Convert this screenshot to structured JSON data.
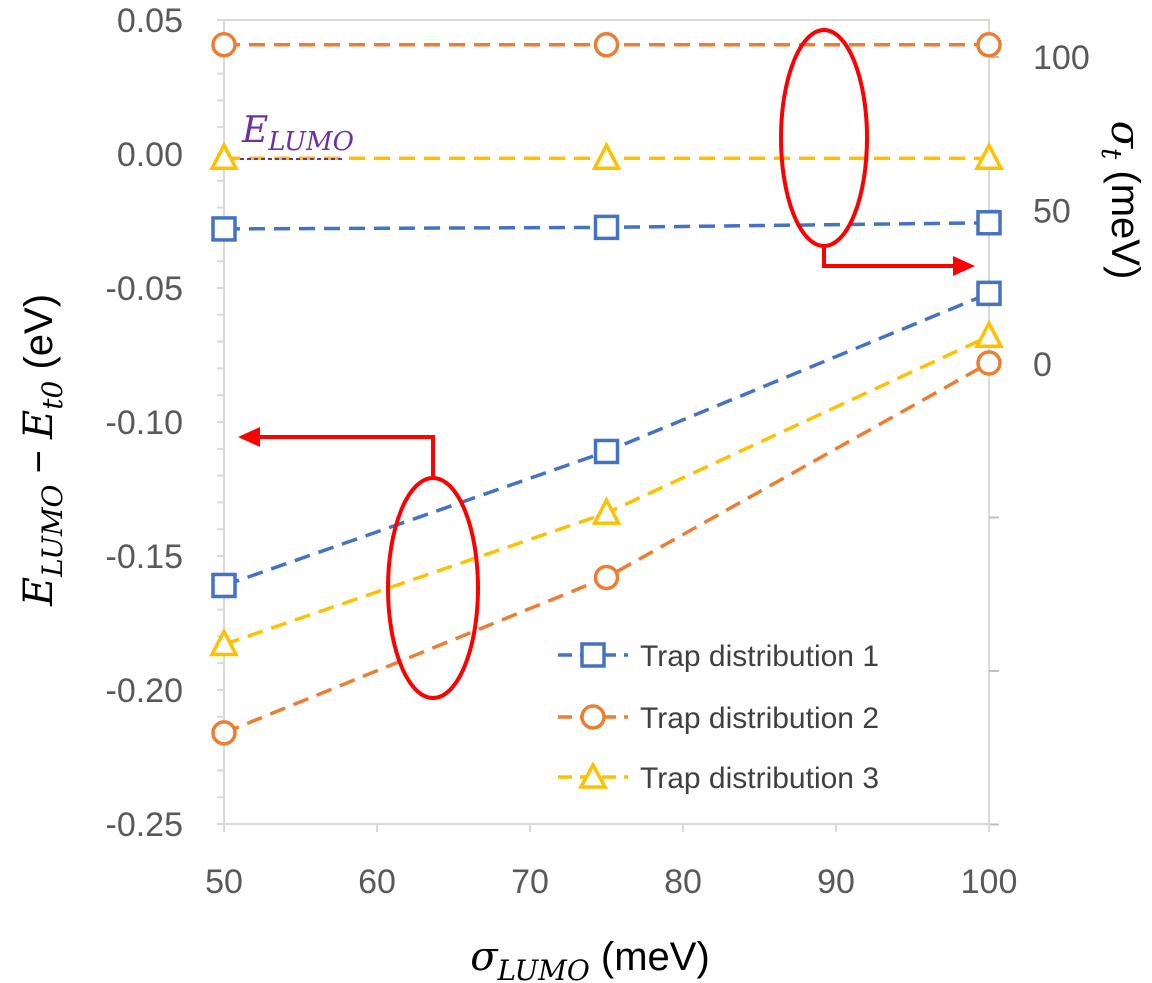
{
  "chart_data": {
    "type": "line",
    "x": [
      50,
      75,
      100
    ],
    "xlim": [
      50,
      100
    ],
    "xticks": [
      "50",
      "60",
      "70",
      "80",
      "90",
      "100"
    ],
    "xlabel": {
      "main": "σ",
      "sub": "LUMO",
      "unit": " (meV)"
    },
    "y_left": {
      "lim": [
        -0.25,
        0.05
      ],
      "ticks": [
        "0.05",
        "0.00",
        "-0.05",
        "-0.10",
        "-0.15",
        "-0.20",
        "-0.25"
      ],
      "label": {
        "a": "E",
        "a_sub": "LUMO",
        "op": " − ",
        "b": "E",
        "b_sub": "t0",
        "unit": " (eV)"
      }
    },
    "y_right": {
      "lim": [
        0,
        100
      ],
      "ticks": [
        "100",
        "50",
        "0"
      ],
      "label": {
        "main": "σ",
        "sub": "t",
        "unit": " (meV)"
      }
    },
    "annotation": {
      "main": "E",
      "sub": "LUMO"
    },
    "legend_position": "bottom-right",
    "series": [
      {
        "name": "Trap distribution 1",
        "color": "#4472c4",
        "marker": "square",
        "left_values": [
          -0.161,
          -0.111,
          -0.052
        ],
        "right_values": [
          44,
          44.5,
          46
        ]
      },
      {
        "name": "Trap distribution 2",
        "color": "#ed7d31",
        "marker": "circle",
        "left_values": [
          -0.216,
          -0.158,
          -0.078
        ],
        "right_values": [
          104,
          104,
          104
        ]
      },
      {
        "name": "Trap distribution 3",
        "color": "#ffc000",
        "marker": "triangle",
        "left_values": [
          -0.183,
          -0.134,
          -0.068
        ],
        "right_values": [
          67,
          67,
          67
        ]
      }
    ]
  }
}
